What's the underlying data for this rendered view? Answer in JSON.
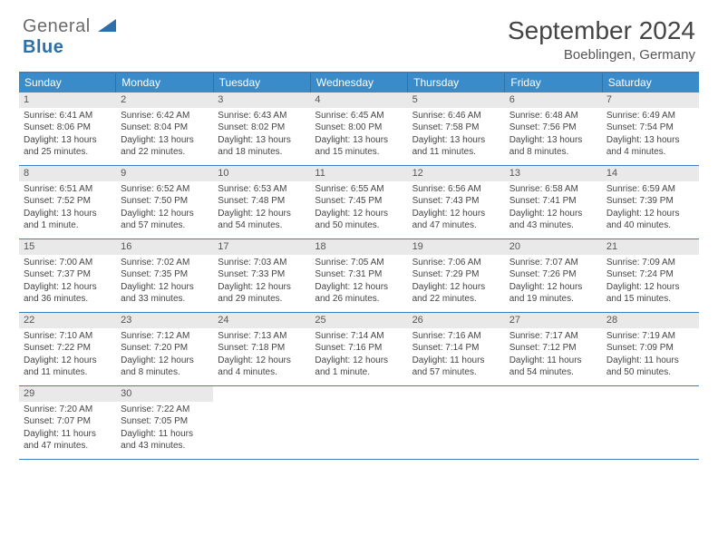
{
  "logo": {
    "word1": "General",
    "word2": "Blue"
  },
  "title": "September 2024",
  "location": "Boeblingen, Germany",
  "colors": {
    "header_bg": "#3a8bc9",
    "header_border": "#3a7fbf",
    "daynum_bg": "#e9e9e9",
    "text": "#444444"
  },
  "daynames": [
    "Sunday",
    "Monday",
    "Tuesday",
    "Wednesday",
    "Thursday",
    "Friday",
    "Saturday"
  ],
  "weeks": [
    [
      {
        "n": "1",
        "sr": "Sunrise: 6:41 AM",
        "ss": "Sunset: 8:06 PM",
        "d1": "Daylight: 13 hours",
        "d2": "and 25 minutes."
      },
      {
        "n": "2",
        "sr": "Sunrise: 6:42 AM",
        "ss": "Sunset: 8:04 PM",
        "d1": "Daylight: 13 hours",
        "d2": "and 22 minutes."
      },
      {
        "n": "3",
        "sr": "Sunrise: 6:43 AM",
        "ss": "Sunset: 8:02 PM",
        "d1": "Daylight: 13 hours",
        "d2": "and 18 minutes."
      },
      {
        "n": "4",
        "sr": "Sunrise: 6:45 AM",
        "ss": "Sunset: 8:00 PM",
        "d1": "Daylight: 13 hours",
        "d2": "and 15 minutes."
      },
      {
        "n": "5",
        "sr": "Sunrise: 6:46 AM",
        "ss": "Sunset: 7:58 PM",
        "d1": "Daylight: 13 hours",
        "d2": "and 11 minutes."
      },
      {
        "n": "6",
        "sr": "Sunrise: 6:48 AM",
        "ss": "Sunset: 7:56 PM",
        "d1": "Daylight: 13 hours",
        "d2": "and 8 minutes."
      },
      {
        "n": "7",
        "sr": "Sunrise: 6:49 AM",
        "ss": "Sunset: 7:54 PM",
        "d1": "Daylight: 13 hours",
        "d2": "and 4 minutes."
      }
    ],
    [
      {
        "n": "8",
        "sr": "Sunrise: 6:51 AM",
        "ss": "Sunset: 7:52 PM",
        "d1": "Daylight: 13 hours",
        "d2": "and 1 minute."
      },
      {
        "n": "9",
        "sr": "Sunrise: 6:52 AM",
        "ss": "Sunset: 7:50 PM",
        "d1": "Daylight: 12 hours",
        "d2": "and 57 minutes."
      },
      {
        "n": "10",
        "sr": "Sunrise: 6:53 AM",
        "ss": "Sunset: 7:48 PM",
        "d1": "Daylight: 12 hours",
        "d2": "and 54 minutes."
      },
      {
        "n": "11",
        "sr": "Sunrise: 6:55 AM",
        "ss": "Sunset: 7:45 PM",
        "d1": "Daylight: 12 hours",
        "d2": "and 50 minutes."
      },
      {
        "n": "12",
        "sr": "Sunrise: 6:56 AM",
        "ss": "Sunset: 7:43 PM",
        "d1": "Daylight: 12 hours",
        "d2": "and 47 minutes."
      },
      {
        "n": "13",
        "sr": "Sunrise: 6:58 AM",
        "ss": "Sunset: 7:41 PM",
        "d1": "Daylight: 12 hours",
        "d2": "and 43 minutes."
      },
      {
        "n": "14",
        "sr": "Sunrise: 6:59 AM",
        "ss": "Sunset: 7:39 PM",
        "d1": "Daylight: 12 hours",
        "d2": "and 40 minutes."
      }
    ],
    [
      {
        "n": "15",
        "sr": "Sunrise: 7:00 AM",
        "ss": "Sunset: 7:37 PM",
        "d1": "Daylight: 12 hours",
        "d2": "and 36 minutes."
      },
      {
        "n": "16",
        "sr": "Sunrise: 7:02 AM",
        "ss": "Sunset: 7:35 PM",
        "d1": "Daylight: 12 hours",
        "d2": "and 33 minutes."
      },
      {
        "n": "17",
        "sr": "Sunrise: 7:03 AM",
        "ss": "Sunset: 7:33 PM",
        "d1": "Daylight: 12 hours",
        "d2": "and 29 minutes."
      },
      {
        "n": "18",
        "sr": "Sunrise: 7:05 AM",
        "ss": "Sunset: 7:31 PM",
        "d1": "Daylight: 12 hours",
        "d2": "and 26 minutes."
      },
      {
        "n": "19",
        "sr": "Sunrise: 7:06 AM",
        "ss": "Sunset: 7:29 PM",
        "d1": "Daylight: 12 hours",
        "d2": "and 22 minutes."
      },
      {
        "n": "20",
        "sr": "Sunrise: 7:07 AM",
        "ss": "Sunset: 7:26 PM",
        "d1": "Daylight: 12 hours",
        "d2": "and 19 minutes."
      },
      {
        "n": "21",
        "sr": "Sunrise: 7:09 AM",
        "ss": "Sunset: 7:24 PM",
        "d1": "Daylight: 12 hours",
        "d2": "and 15 minutes."
      }
    ],
    [
      {
        "n": "22",
        "sr": "Sunrise: 7:10 AM",
        "ss": "Sunset: 7:22 PM",
        "d1": "Daylight: 12 hours",
        "d2": "and 11 minutes."
      },
      {
        "n": "23",
        "sr": "Sunrise: 7:12 AM",
        "ss": "Sunset: 7:20 PM",
        "d1": "Daylight: 12 hours",
        "d2": "and 8 minutes."
      },
      {
        "n": "24",
        "sr": "Sunrise: 7:13 AM",
        "ss": "Sunset: 7:18 PM",
        "d1": "Daylight: 12 hours",
        "d2": "and 4 minutes."
      },
      {
        "n": "25",
        "sr": "Sunrise: 7:14 AM",
        "ss": "Sunset: 7:16 PM",
        "d1": "Daylight: 12 hours",
        "d2": "and 1 minute."
      },
      {
        "n": "26",
        "sr": "Sunrise: 7:16 AM",
        "ss": "Sunset: 7:14 PM",
        "d1": "Daylight: 11 hours",
        "d2": "and 57 minutes."
      },
      {
        "n": "27",
        "sr": "Sunrise: 7:17 AM",
        "ss": "Sunset: 7:12 PM",
        "d1": "Daylight: 11 hours",
        "d2": "and 54 minutes."
      },
      {
        "n": "28",
        "sr": "Sunrise: 7:19 AM",
        "ss": "Sunset: 7:09 PM",
        "d1": "Daylight: 11 hours",
        "d2": "and 50 minutes."
      }
    ],
    [
      {
        "n": "29",
        "sr": "Sunrise: 7:20 AM",
        "ss": "Sunset: 7:07 PM",
        "d1": "Daylight: 11 hours",
        "d2": "and 47 minutes."
      },
      {
        "n": "30",
        "sr": "Sunrise: 7:22 AM",
        "ss": "Sunset: 7:05 PM",
        "d1": "Daylight: 11 hours",
        "d2": "and 43 minutes."
      },
      null,
      null,
      null,
      null,
      null
    ]
  ]
}
